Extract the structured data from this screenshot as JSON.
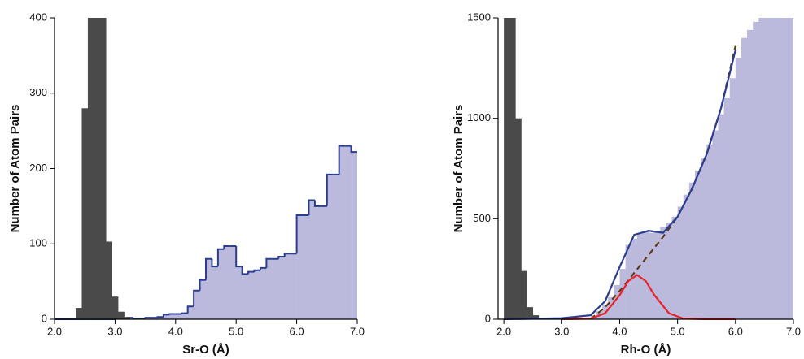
{
  "chart_data": [
    {
      "type": "histogram",
      "xlabel": "Sr-O (Å)",
      "ylabel": "Number of Atom Pairs",
      "xlim": [
        2.0,
        7.0
      ],
      "ylim": [
        0,
        400
      ],
      "xticks": [
        {
          "value": 2.0,
          "label": "2.0"
        },
        {
          "value": 3.0,
          "label": "3.0"
        },
        {
          "value": 4.0,
          "label": "4.0"
        },
        {
          "value": 5.0,
          "label": "5.0"
        },
        {
          "value": 6.0,
          "label": "6.0"
        },
        {
          "value": 7.0,
          "label": "7.0"
        }
      ],
      "yticks": [
        0,
        100,
        200,
        300,
        400
      ],
      "series": [
        {
          "kind": "step",
          "color": "#bcbadc",
          "edge": "#2b3d8f",
          "bins": [
            2.0,
            2.1,
            2.2,
            2.3,
            2.4,
            2.5,
            2.6,
            2.7,
            2.8,
            2.9,
            3.0,
            3.1,
            3.2,
            3.3,
            3.4,
            3.5,
            3.6,
            3.7,
            3.8,
            3.9,
            4.0,
            4.1,
            4.2,
            4.3,
            4.4,
            4.5,
            4.6,
            4.7,
            4.8,
            4.9,
            5.0,
            5.1,
            5.2,
            5.3,
            5.4,
            5.5,
            5.6,
            5.7,
            5.8,
            5.9,
            6.0,
            6.1,
            6.2,
            6.3,
            6.4,
            6.5,
            6.6,
            6.7,
            6.8,
            6.9,
            7.0
          ],
          "values": [
            0,
            0,
            0,
            0,
            0,
            0,
            0,
            0,
            0,
            0,
            1,
            1,
            2,
            1,
            1,
            2,
            2,
            3,
            6,
            7,
            7,
            8,
            17,
            38,
            52,
            80,
            70,
            93,
            97,
            97,
            70,
            60,
            63,
            65,
            68,
            80,
            80,
            83,
            87,
            87,
            138,
            138,
            158,
            150,
            150,
            192,
            192,
            230,
            230,
            222
          ]
        },
        {
          "kind": "bar",
          "color": "#4a4a4a",
          "bins": [
            2.35,
            2.45,
            2.55,
            2.65,
            2.75,
            2.85,
            2.95,
            3.05,
            3.15,
            3.25
          ],
          "values": [
            15,
            280,
            400,
            400,
            400,
            103,
            30,
            10,
            3
          ]
        }
      ]
    },
    {
      "type": "histogram",
      "xlabel": "Rh-O (Å)",
      "ylabel": "Number of Atom Pairs",
      "xlim": [
        1.9,
        7.0
      ],
      "ylim": [
        0,
        1500
      ],
      "xticks": [
        {
          "value": 2.0,
          "label": "2.0"
        },
        {
          "value": 3.0,
          "label": "3.0"
        },
        {
          "value": 4.0,
          "label": "4.0"
        },
        {
          "value": 5.0,
          "label": "5.0"
        },
        {
          "value": 6.0,
          "label": "6.0"
        },
        {
          "value": 7.0,
          "label": "7.0"
        }
      ],
      "yticks": [
        0,
        500,
        1000,
        1500
      ],
      "series": [
        {
          "kind": "bar",
          "color": "#bcbadc",
          "bins": [
            3.5,
            3.6,
            3.7,
            3.8,
            3.9,
            4.0,
            4.1,
            4.2,
            4.3,
            4.4,
            4.5,
            4.6,
            4.7,
            4.8,
            4.9,
            5.0,
            5.1,
            5.2,
            5.3,
            5.4,
            5.5,
            5.6,
            5.7,
            5.8,
            5.9,
            6.0,
            6.1,
            6.2,
            6.3,
            6.4,
            6.5,
            6.6,
            6.7,
            6.8,
            6.9,
            7.0
          ],
          "values": [
            20,
            40,
            70,
            110,
            170,
            250,
            370,
            400,
            430,
            440,
            430,
            440,
            460,
            480,
            510,
            560,
            620,
            680,
            740,
            800,
            870,
            940,
            1020,
            1100,
            1200,
            1300,
            1400,
            1440,
            1480,
            1500,
            1500,
            1500,
            1500,
            1500,
            1500
          ]
        },
        {
          "kind": "bar",
          "color": "#4a4a4a",
          "bins": [
            2.0,
            2.1,
            2.2,
            2.3,
            2.4,
            2.5,
            2.6
          ],
          "values": [
            1500,
            1500,
            1000,
            240,
            60,
            20
          ]
        },
        {
          "kind": "line",
          "color": "#5a3a1a",
          "dash": true,
          "x": [
            3.5,
            3.75,
            4.0,
            4.25,
            4.5,
            4.75,
            5.0,
            5.25,
            5.5,
            5.75,
            6.0
          ],
          "values": [
            0,
            60,
            140,
            230,
            320,
            410,
            510,
            650,
            820,
            1050,
            1360
          ]
        },
        {
          "kind": "line",
          "color": "#e8242a",
          "dash": false,
          "x": [
            3.0,
            3.5,
            3.75,
            4.0,
            4.15,
            4.3,
            4.45,
            4.6,
            4.85,
            5.1,
            5.5,
            6.0
          ],
          "values": [
            0,
            3,
            30,
            120,
            190,
            220,
            190,
            120,
            30,
            3,
            0,
            0
          ]
        },
        {
          "kind": "line",
          "color": "#2b3d8f",
          "dash": false,
          "x": [
            2.0,
            3.0,
            3.5,
            3.75,
            4.0,
            4.25,
            4.5,
            4.75,
            5.0,
            5.25,
            5.5,
            5.75,
            6.0
          ],
          "values": [
            0,
            5,
            20,
            90,
            260,
            420,
            440,
            430,
            510,
            650,
            820,
            1050,
            1340
          ]
        }
      ]
    }
  ]
}
